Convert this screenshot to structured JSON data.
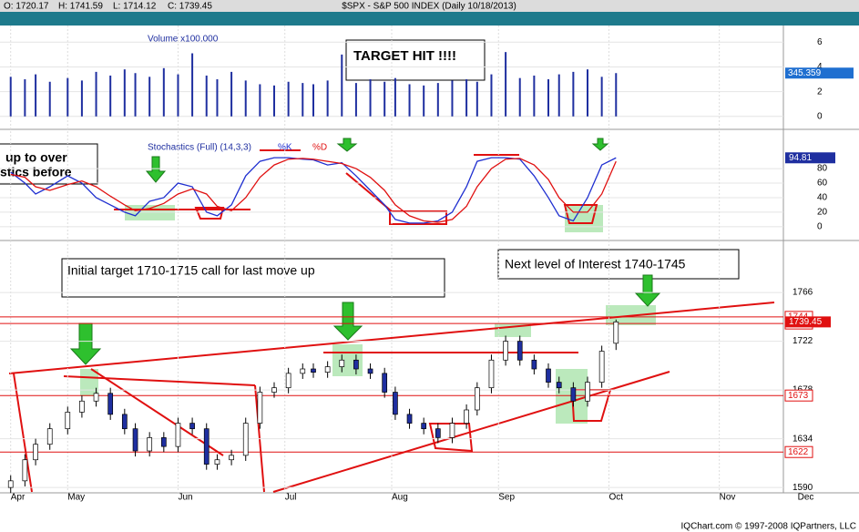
{
  "header": {
    "title": "$SPX - S&P 500 INDEX (Daily 10/18/2013)",
    "ohlc": [
      "O: 1720.17",
      "H: 1741.59",
      "L: 1714.12",
      "C: 1739.45"
    ]
  },
  "footer": "IQChart.com © 1997-2008 IQPartners, LLC",
  "chart_data": [
    {
      "type": "bar",
      "title": "Volume x100,000",
      "color": "#1f2fa0",
      "values": [
        3.2,
        3.0,
        3.4,
        2.8,
        3.1,
        2.9,
        3.6,
        3.3,
        3.8,
        3.5,
        3.2,
        3.9,
        3.4,
        5.1,
        3.3,
        3.0,
        3.6,
        2.9,
        2.6,
        2.5,
        2.8,
        2.7,
        2.6,
        2.9,
        5.0,
        2.7,
        3.0,
        2.8,
        3.1,
        2.6,
        2.5,
        2.7,
        2.9,
        3.0,
        2.8,
        3.4,
        5.2,
        3.1,
        3.3,
        3.0,
        3.4,
        3.6,
        3.8,
        3.2,
        3.5
      ],
      "value_label": "345.359",
      "ylim": [
        -0.9,
        7.2
      ],
      "yticks": [
        0,
        2,
        4,
        6
      ]
    },
    {
      "type": "line",
      "title": "Stochastics (Full) (14,3,3)",
      "series": [
        {
          "name": "%K",
          "color": "#1f2fd0",
          "values": [
            75,
            60,
            45,
            55,
            70,
            60,
            40,
            30,
            20,
            15,
            35,
            40,
            60,
            55,
            20,
            15,
            30,
            70,
            90,
            95,
            95,
            93,
            92,
            85,
            88,
            70,
            50,
            30,
            10,
            5,
            5,
            8,
            20,
            55,
            90,
            95,
            95,
            93,
            70,
            40,
            15,
            8,
            40,
            85,
            94.81
          ]
        },
        {
          "name": "%D",
          "color": "#e01010",
          "values": [
            72,
            68,
            55,
            50,
            58,
            63,
            55,
            42,
            30,
            22,
            25,
            32,
            45,
            52,
            45,
            28,
            22,
            40,
            68,
            85,
            93,
            94,
            93,
            90,
            87,
            80,
            68,
            50,
            30,
            15,
            8,
            6,
            10,
            28,
            55,
            80,
            93,
            94,
            85,
            65,
            40,
            20,
            20,
            45,
            90
          ]
        }
      ],
      "ylim": [
        -14,
        124
      ],
      "yticks": [
        0,
        20,
        40,
        60,
        80
      ]
    },
    {
      "type": "candlestick",
      "x": [
        -14,
        -10,
        -7,
        -3,
        2,
        6,
        10,
        14,
        18,
        21,
        25,
        29,
        33,
        37,
        41,
        44,
        48,
        52,
        56,
        60,
        64,
        68,
        71,
        75,
        79,
        83,
        87,
        91,
        94,
        98,
        102,
        106,
        110,
        114,
        117,
        121,
        125,
        129,
        133,
        137,
        140,
        144,
        148,
        152,
        156
      ],
      "open": [
        1590,
        1596,
        1615,
        1629,
        1643,
        1658,
        1668,
        1675,
        1656,
        1643,
        1623,
        1635,
        1627,
        1648,
        1643,
        1611,
        1615,
        1619,
        1648,
        1676,
        1680,
        1693,
        1697,
        1694,
        1699,
        1705,
        1697,
        1693,
        1676,
        1656,
        1648,
        1643,
        1635,
        1648,
        1660,
        1680,
        1705,
        1722,
        1705,
        1697,
        1685,
        1680,
        1668,
        1685,
        1720.17
      ],
      "high": [
        1601,
        1620,
        1634,
        1648,
        1663,
        1673,
        1680,
        1680,
        1661,
        1648,
        1640,
        1640,
        1653,
        1653,
        1648,
        1620,
        1624,
        1653,
        1681,
        1685,
        1698,
        1702,
        1702,
        1704,
        1710,
        1710,
        1702,
        1698,
        1681,
        1661,
        1653,
        1648,
        1653,
        1665,
        1685,
        1710,
        1727,
        1727,
        1710,
        1702,
        1690,
        1685,
        1690,
        1718,
        1741.59
      ],
      "low": [
        1585,
        1591,
        1610,
        1624,
        1638,
        1653,
        1663,
        1651,
        1638,
        1618,
        1618,
        1622,
        1622,
        1638,
        1606,
        1606,
        1610,
        1614,
        1643,
        1671,
        1675,
        1688,
        1689,
        1689,
        1694,
        1692,
        1688,
        1671,
        1651,
        1643,
        1638,
        1630,
        1630,
        1643,
        1655,
        1675,
        1700,
        1700,
        1692,
        1680,
        1675,
        1663,
        1663,
        1680,
        1714.12
      ],
      "close": [
        1596,
        1615,
        1629,
        1643,
        1658,
        1668,
        1675,
        1656,
        1643,
        1623,
        1635,
        1627,
        1648,
        1643,
        1611,
        1615,
        1619,
        1648,
        1676,
        1680,
        1693,
        1697,
        1694,
        1699,
        1705,
        1697,
        1693,
        1676,
        1656,
        1648,
        1643,
        1635,
        1648,
        1660,
        1680,
        1705,
        1722,
        1705,
        1697,
        1685,
        1680,
        1668,
        1685,
        1713,
        1739.45
      ],
      "xlim": [
        -17,
        203
      ],
      "xticks": [
        {
          "value": -14,
          "label": "Apr"
        },
        {
          "value": 2,
          "label": "May"
        },
        {
          "value": 33,
          "label": "Jun"
        },
        {
          "value": 63,
          "label": "Jul"
        },
        {
          "value": 93,
          "label": "Aug"
        },
        {
          "value": 123,
          "label": "Sep"
        },
        {
          "value": 154,
          "label": "Oct"
        },
        {
          "value": 185,
          "label": "Nov"
        },
        {
          "value": 207,
          "label": "Dec"
        }
      ],
      "ylim": [
        1586,
        1808
      ],
      "yticks": [
        1590,
        1634,
        1678,
        1722,
        1766
      ],
      "levels": [
        1744,
        1738,
        1673,
        1622
      ],
      "level_color": "#e01010",
      "annotations": [
        "Initial target 1710-1715 call for last move up",
        "Next level of Interest 1740-1745",
        "TARGET HIT !!!!",
        "up to over",
        "stics before"
      ]
    }
  ]
}
